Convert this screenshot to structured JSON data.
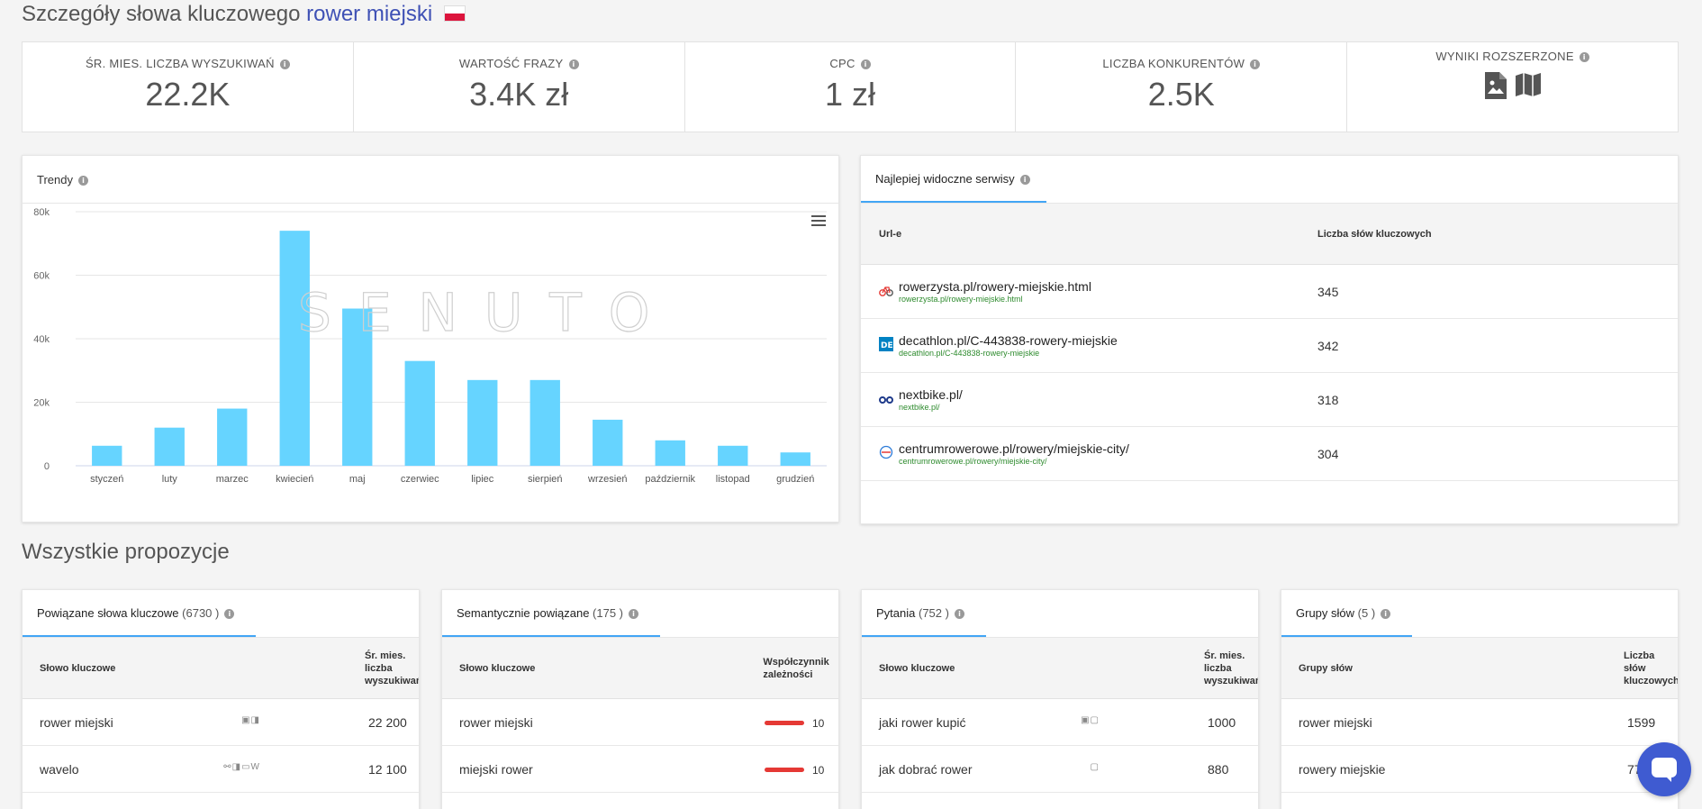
{
  "header": {
    "title_prefix": "Szczegóły słowa kluczowego",
    "keyword": "rower miejski"
  },
  "stats": [
    {
      "label": "ŚR. MIES. LICZBA WYSZUKIWAŃ",
      "value": "22.2K"
    },
    {
      "label": "WARTOŚĆ FRAZY",
      "value": "3.4K zł"
    },
    {
      "label": "CPC",
      "value": "1 zł"
    },
    {
      "label": "LICZBA KONKURENTÓW",
      "value": "2.5K"
    },
    {
      "label": "WYNIKI ROZSZERZONE",
      "icons": [
        "image-feature-icon",
        "map-feature-icon"
      ]
    }
  ],
  "trends": {
    "title": "Trendy",
    "watermark": "SENUTO"
  },
  "chart_data": {
    "type": "bar",
    "categories": [
      "styczeń",
      "luty",
      "marzec",
      "kwiecień",
      "maj",
      "czerwiec",
      "lipiec",
      "sierpień",
      "wrzesień",
      "październik",
      "listopad",
      "grudzień"
    ],
    "values": [
      6300,
      12000,
      18000,
      74000,
      49500,
      33000,
      27000,
      27000,
      14500,
      8000,
      6300,
      4200
    ],
    "ylim": [
      0,
      80000
    ],
    "yticks": [
      0,
      20000,
      40000,
      60000,
      80000
    ],
    "ytick_labels": [
      "0",
      "20k",
      "40k",
      "60k",
      "80k"
    ],
    "color": "#66d4ff",
    "grid": true
  },
  "visible_sites": {
    "tab_label": "Najlepiej widoczne serwisy",
    "col_url": "Url-e",
    "col_count": "Liczba słów kluczowych",
    "rows": [
      {
        "url": "rowerzysta.pl/rowery-miejskie.html",
        "sub": "rowerzysta.pl/rowery-miejskie.html",
        "count": "345",
        "icon": "bicycle-red-icon"
      },
      {
        "url": "decathlon.pl/C-443838-rowery-miejskie",
        "sub": "decathlon.pl/C-443838-rowery-miejskie",
        "count": "342",
        "icon": "decathlon-logo-icon",
        "logo_text": "DE"
      },
      {
        "url": "nextbike.pl/",
        "sub": "nextbike.pl/",
        "count": "318",
        "icon": "bicycle-blue-icon"
      },
      {
        "url": "centrumrowerowe.pl/rowery/miejskie-city/",
        "sub": "centrumrowerowe.pl/rowery/miejskie-city/",
        "count": "304",
        "icon": "centrum-logo-icon"
      }
    ]
  },
  "all_suggestions_title": "Wszystkie propozycje",
  "panels": [
    {
      "tab": "Powiązane słowa kluczowe",
      "count": "(6730 )",
      "col1": "Słowo kluczowe",
      "col2": "Śr. mies. liczba wyszukiwań",
      "rows": [
        {
          "kw": "rower miejski",
          "icons": "▣◨",
          "val": "22 200"
        },
        {
          "kw": "wavelo",
          "icons": "⚯◨▭W",
          "val": "12 100"
        }
      ]
    },
    {
      "tab": "Semantycznie powiązane",
      "count": "(175 )",
      "col1": "Słowo kluczowe",
      "col2": "Współczynnik zależności",
      "rows": [
        {
          "kw": "rower miejski",
          "val": "10"
        },
        {
          "kw": "miejski rower",
          "val": "10"
        }
      ]
    },
    {
      "tab": "Pytania",
      "count": "(752 )",
      "col1": "Słowo kluczowe",
      "col2": "Śr. mies. liczba wyszukiwań",
      "rows": [
        {
          "kw": "jaki rower kupić",
          "icons": "▣▢",
          "val": "1000"
        },
        {
          "kw": "jak dobrać rower",
          "icons": "▢",
          "val": "880"
        }
      ]
    },
    {
      "tab": "Grupy słów",
      "count": "(5 )",
      "col1": "Grupy słów",
      "col2": "Liczba słów kluczowych",
      "rows": [
        {
          "kw": "rower miejski",
          "val": "1599"
        },
        {
          "kw": "rowery miejskie",
          "val": "777"
        }
      ]
    }
  ]
}
